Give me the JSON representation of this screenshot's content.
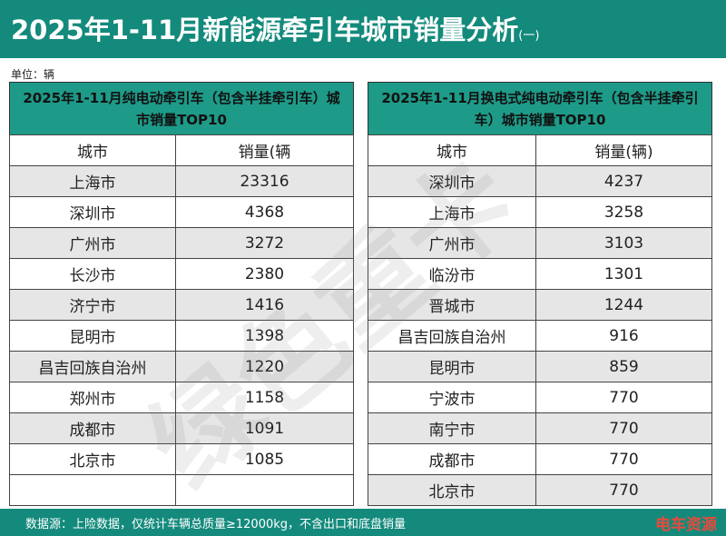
{
  "header": {
    "title": "2025年1-11月新能源牵引车城市销量分析",
    "title_suffix": "(一)"
  },
  "unit": "单位：辆",
  "tables": [
    {
      "title": "2025年1-11月纯电动牵引车（包含半挂牵引车）城市销量TOP10",
      "columns": [
        "城市",
        "销量(辆"
      ],
      "rows": [
        [
          "上海市",
          23316
        ],
        [
          "深圳市",
          4368
        ],
        [
          "广州市",
          3272
        ],
        [
          "长沙市",
          2380
        ],
        [
          "济宁市",
          1416
        ],
        [
          "昆明市",
          1398
        ],
        [
          "昌吉回族自治州",
          1220
        ],
        [
          "郑州市",
          1158
        ],
        [
          "成都市",
          1091
        ],
        [
          "北京市",
          1085
        ]
      ]
    },
    {
      "title": "2025年1-11月换电式纯电动牵引车（包含半挂牵引车）城市销量TOP10",
      "columns": [
        "城市",
        "销量(辆)"
      ],
      "rows": [
        [
          "深圳市",
          4237
        ],
        [
          "上海市",
          3258
        ],
        [
          "广州市",
          3103
        ],
        [
          "临汾市",
          1301
        ],
        [
          "晋城市",
          1244
        ],
        [
          "昌吉回族自治州",
          916
        ],
        [
          "昆明市",
          859
        ],
        [
          "宁波市",
          770
        ],
        [
          "南宁市",
          770
        ],
        [
          "成都市",
          770
        ],
        [
          "北京市",
          770
        ]
      ]
    }
  ],
  "footer": {
    "source": "数据源：上险数据，仅统计车辆总质量≥12000kg，不含出口和底盘销量",
    "logo": "电车资源"
  },
  "watermark": "绿色重卡"
}
